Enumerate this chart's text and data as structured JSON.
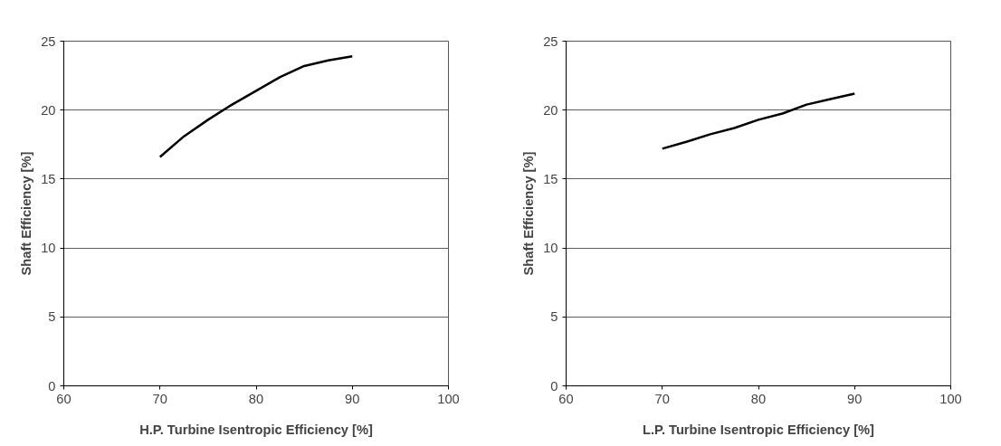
{
  "chart_data": [
    {
      "type": "line",
      "xlabel": "H.P. Turbine Isentropic Efficiency [%]",
      "ylabel": "Shaft Efficiency [%]",
      "xlim": [
        60,
        100
      ],
      "xticks": [
        60,
        70,
        80,
        90,
        100
      ],
      "ylim": [
        0,
        25
      ],
      "yticks": [
        0,
        5,
        10,
        15,
        20,
        25
      ],
      "grid": "y",
      "x": [
        70,
        72.5,
        75,
        77.5,
        80,
        82.5,
        85,
        87.5,
        90
      ],
      "series": [
        {
          "color": "#000000",
          "values": [
            16.6,
            18.1,
            19.3,
            20.4,
            21.4,
            22.4,
            23.2,
            23.6,
            23.9
          ]
        }
      ]
    },
    {
      "type": "line",
      "xlabel": "L.P. Turbine Isentropic Efficiency [%]",
      "ylabel": "Shaft Efficiency [%]",
      "xlim": [
        60,
        100
      ],
      "xticks": [
        60,
        70,
        80,
        90,
        100
      ],
      "ylim": [
        0,
        25
      ],
      "yticks": [
        0,
        5,
        10,
        15,
        20,
        25
      ],
      "grid": "y",
      "x": [
        70,
        72.5,
        75,
        77.5,
        80,
        82.5,
        85,
        87.5,
        90
      ],
      "series": [
        {
          "color": "#000000",
          "values": [
            17.2,
            17.7,
            18.25,
            18.7,
            19.3,
            19.75,
            20.4,
            20.8,
            21.2
          ]
        }
      ]
    }
  ]
}
